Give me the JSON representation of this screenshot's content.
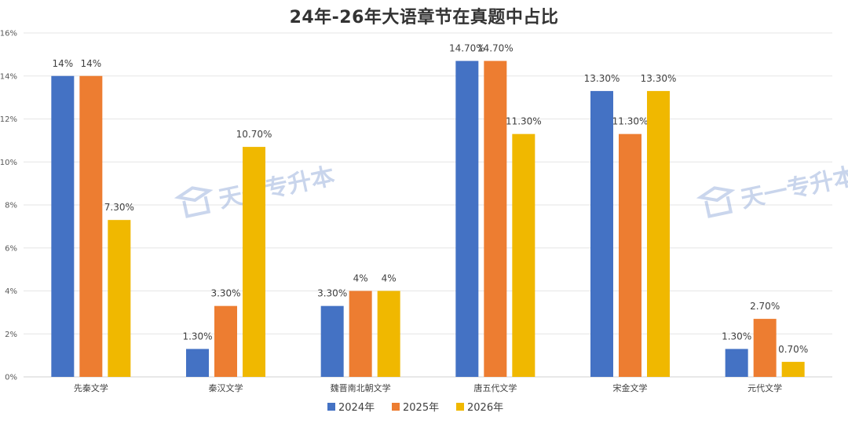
{
  "chart_data": {
    "type": "bar",
    "title": "24年-26年大语章节在真题中占比",
    "categories": [
      "先秦文学",
      "秦汉文学",
      "魏晋南北朝文学",
      "唐五代文学",
      "宋金文学",
      "元代文学"
    ],
    "series": [
      {
        "name": "2024年",
        "color": "#4472C4",
        "values": [
          14,
          1.3,
          3.3,
          14.7,
          13.3,
          1.3
        ],
        "labels": [
          "14%",
          "1.30%",
          "3.30%",
          "14.70%",
          "13.30%",
          "1.30%"
        ]
      },
      {
        "name": "2025年",
        "color": "#ED7D31",
        "values": [
          14,
          3.3,
          4,
          14.7,
          11.3,
          2.7
        ],
        "labels": [
          "14%",
          "3.30%",
          "4%",
          "14.70%",
          "11.30%",
          "2.70%"
        ]
      },
      {
        "name": "2026年",
        "color": "#F0B800",
        "values": [
          7.3,
          10.7,
          4,
          11.3,
          13.3,
          0.7
        ],
        "labels": [
          "7.30%",
          "10.70%",
          "4%",
          "11.30%",
          "13.30%",
          "0.70%"
        ]
      }
    ],
    "yticks": [
      "0%",
      "2%",
      "4%",
      "6%",
      "8%",
      "10%",
      "12%",
      "14%",
      "16%"
    ],
    "ylim": [
      0,
      16
    ],
    "grid": true,
    "legend_position": "bottom"
  },
  "watermark": {
    "text": "天一专升本"
  }
}
